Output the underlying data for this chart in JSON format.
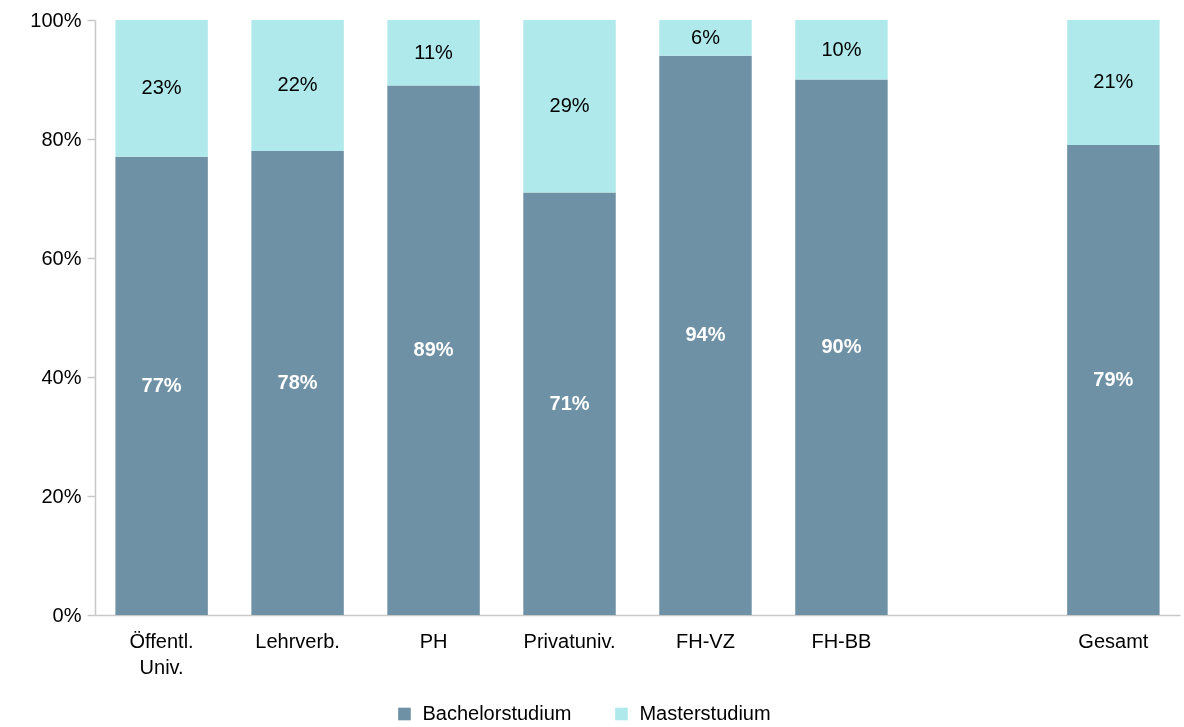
{
  "chart_data": {
    "type": "bar",
    "stacked": true,
    "categories": [
      "Öffentl. Univ.",
      "Lehrverb.",
      "PH",
      "Privatuniv.",
      "FH-VZ",
      "FH-BB",
      null,
      "Gesamt"
    ],
    "series": [
      {
        "name": "Bachelorstudium",
        "color": "#6f91a5",
        "values": [
          77,
          78,
          89,
          71,
          94,
          90,
          null,
          79
        ],
        "value_labels": [
          "77%",
          "78%",
          "89%",
          "71%",
          "94%",
          "90%",
          null,
          "79%"
        ]
      },
      {
        "name": "Masterstudium",
        "color": "#b0e9eb",
        "values": [
          23,
          22,
          11,
          29,
          6,
          10,
          null,
          21
        ],
        "value_labels": [
          "23%",
          "22%",
          "11%",
          "29%",
          "6%",
          "10%",
          null,
          "21%"
        ]
      }
    ],
    "ylim": [
      0,
      100
    ],
    "yticks": [
      {
        "value": 0,
        "label": "0%"
      },
      {
        "value": 20,
        "label": "20%"
      },
      {
        "value": 40,
        "label": "40%"
      },
      {
        "value": 60,
        "label": "60%"
      },
      {
        "value": 80,
        "label": "80%"
      },
      {
        "value": 100,
        "label": "100%"
      }
    ],
    "legend": "bottom"
  }
}
